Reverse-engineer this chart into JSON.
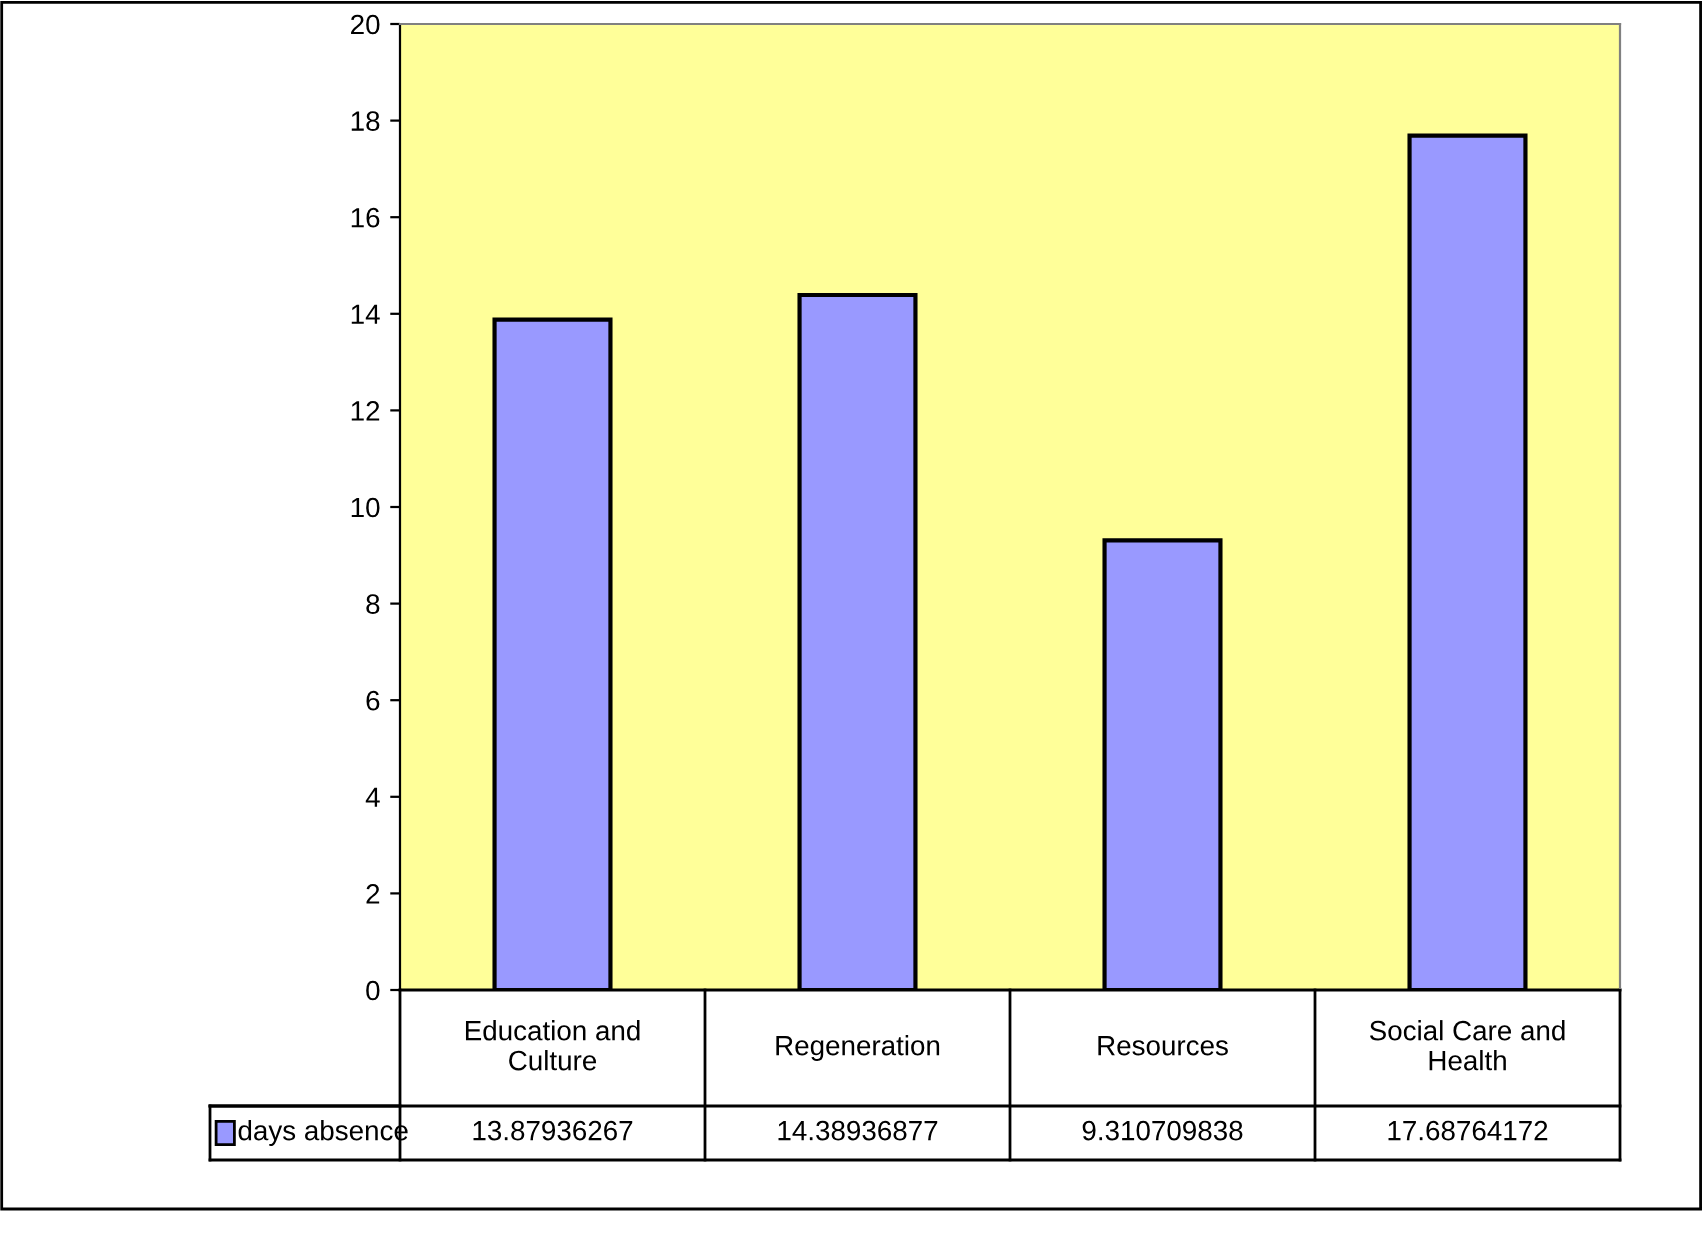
{
  "chart_data": {
    "type": "bar",
    "categories": [
      "Education and Culture",
      "Regeneration",
      "Resources",
      "Social Care and Health"
    ],
    "series": [
      {
        "name": "days absence",
        "color": "#9999ff",
        "values": [
          13.87936267,
          14.38936877,
          9.310709838,
          17.68764172
        ]
      }
    ],
    "ylim": [
      0,
      20
    ],
    "yticks": [
      0,
      2,
      4,
      6,
      8,
      10,
      12,
      14,
      16,
      18,
      20
    ],
    "grid": false,
    "data_labels": true
  }
}
